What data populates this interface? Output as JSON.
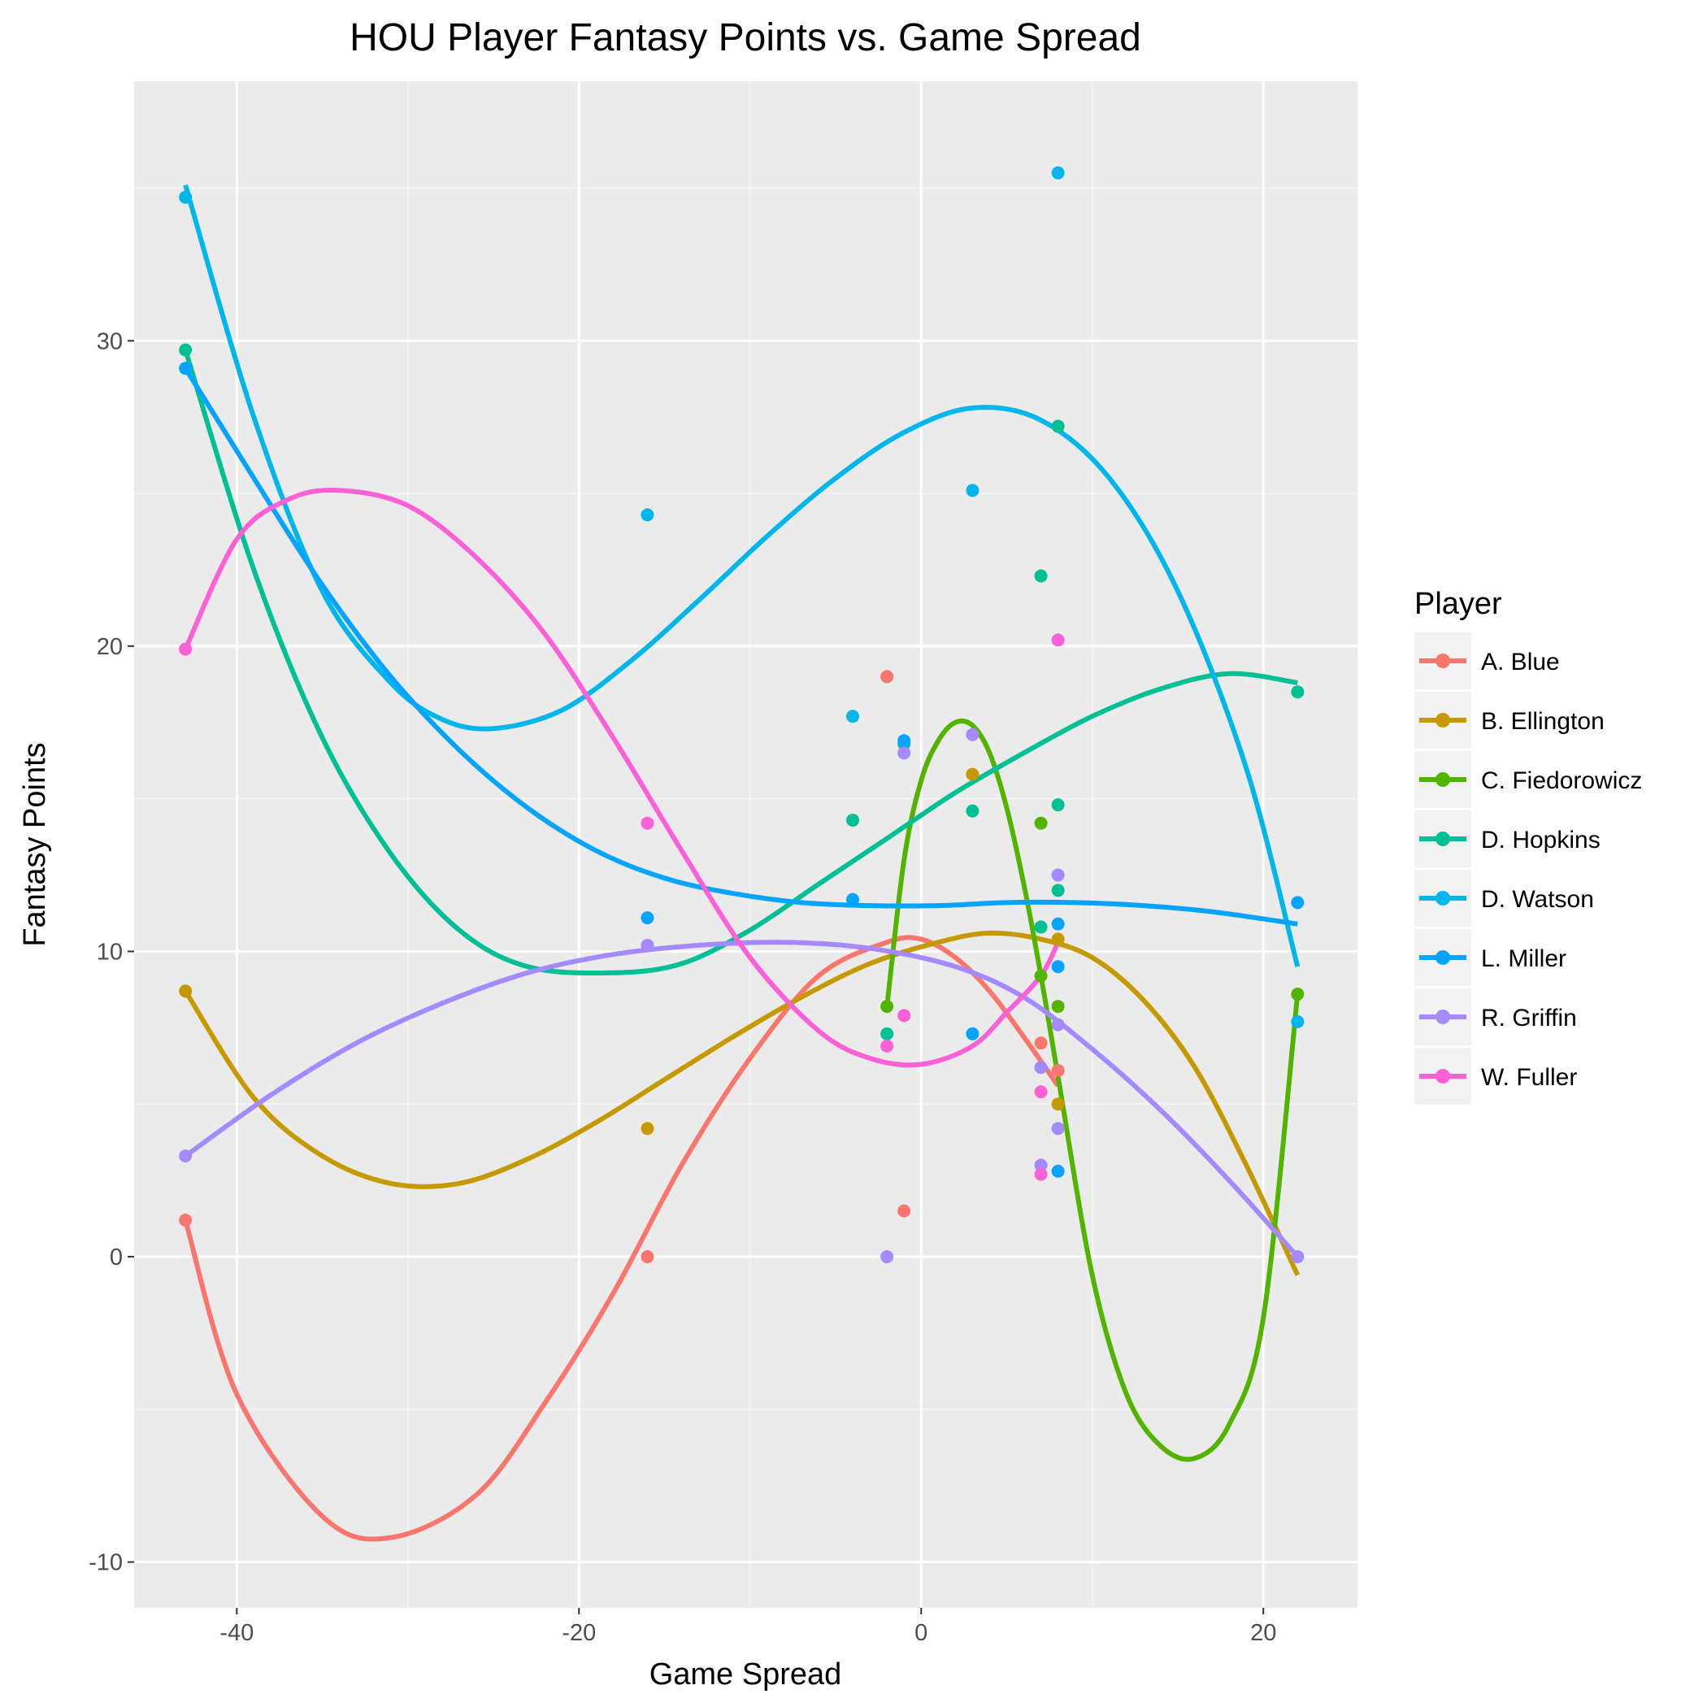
{
  "chart_data": {
    "type": "scatter",
    "title": "HOU Player Fantasy Points vs. Game Spread",
    "xlabel": "Game Spread",
    "ylabel": "Fantasy Points",
    "xlim": [
      -46,
      25.5
    ],
    "ylim": [
      -11.5,
      38.5
    ],
    "xticks": [
      -40,
      -20,
      0,
      20
    ],
    "yticks": [
      -10,
      0,
      10,
      20,
      30
    ],
    "grid": true,
    "legend": {
      "title": "Player",
      "position": "right"
    },
    "series": [
      {
        "name": "A. Blue",
        "color": "#F8766D",
        "points": [
          [
            -43,
            1.2
          ],
          [
            -16,
            0
          ],
          [
            -2,
            19.0
          ],
          [
            -1,
            1.5
          ],
          [
            7,
            7.0
          ],
          [
            8,
            6.1
          ]
        ],
        "smooth": [
          [
            -43,
            1.2
          ],
          [
            -40,
            -4.5
          ],
          [
            -35,
            -8.5
          ],
          [
            -31,
            -9.2
          ],
          [
            -26,
            -7.8
          ],
          [
            -22,
            -4.8
          ],
          [
            -18,
            -1.2
          ],
          [
            -14,
            3.0
          ],
          [
            -10,
            6.5
          ],
          [
            -6,
            9.2
          ],
          [
            -2,
            10.3
          ],
          [
            0,
            10.4
          ],
          [
            2,
            9.8
          ],
          [
            4,
            8.7
          ],
          [
            6,
            7.2
          ],
          [
            8,
            5.6
          ]
        ]
      },
      {
        "name": "B. Ellington",
        "color": "#C49A00",
        "points": [
          [
            -43,
            8.7
          ],
          [
            -16,
            4.2
          ],
          [
            3,
            15.8
          ],
          [
            8,
            5.0
          ],
          [
            8,
            10.4
          ]
        ],
        "smooth": [
          [
            -43,
            8.7
          ],
          [
            -39,
            5.2
          ],
          [
            -35,
            3.3
          ],
          [
            -31,
            2.4
          ],
          [
            -27,
            2.4
          ],
          [
            -23,
            3.2
          ],
          [
            -19,
            4.4
          ],
          [
            -15,
            5.8
          ],
          [
            -11,
            7.2
          ],
          [
            -7,
            8.5
          ],
          [
            -3,
            9.6
          ],
          [
            1,
            10.3
          ],
          [
            4,
            10.6
          ],
          [
            7,
            10.4
          ],
          [
            10,
            9.8
          ],
          [
            13,
            8.4
          ],
          [
            16,
            6.2
          ],
          [
            19,
            3.0
          ],
          [
            22,
            -0.6
          ]
        ]
      },
      {
        "name": "C. Fiedorowicz",
        "color": "#53B400",
        "points": [
          [
            -2,
            8.2
          ],
          [
            7,
            9.2
          ],
          [
            7,
            14.2
          ],
          [
            8,
            8.2
          ],
          [
            22,
            8.6
          ]
        ],
        "smooth": [
          [
            -2,
            8.2
          ],
          [
            -1,
            13.0
          ],
          [
            0,
            15.6
          ],
          [
            1,
            16.9
          ],
          [
            2,
            17.5
          ],
          [
            3,
            17.4
          ],
          [
            4,
            16.5
          ],
          [
            5,
            14.7
          ],
          [
            6,
            12.2
          ],
          [
            7,
            9.2
          ],
          [
            8,
            5.9
          ],
          [
            10,
            -0.6
          ],
          [
            12,
            -4.5
          ],
          [
            14,
            -6.2
          ],
          [
            16,
            -6.6
          ],
          [
            18,
            -5.5
          ],
          [
            20,
            -2.0
          ],
          [
            22,
            8.6
          ]
        ]
      },
      {
        "name": "D. Hopkins",
        "color": "#00C094",
        "points": [
          [
            -43,
            29.7
          ],
          [
            -4,
            14.3
          ],
          [
            -2,
            7.3
          ],
          [
            -1,
            16.8
          ],
          [
            3,
            14.6
          ],
          [
            7,
            22.3
          ],
          [
            7,
            10.8
          ],
          [
            8,
            27.2
          ],
          [
            8,
            14.8
          ],
          [
            8,
            12.0
          ],
          [
            22,
            18.5
          ]
        ],
        "smooth": [
          [
            -43,
            29.7
          ],
          [
            -39,
            22.5
          ],
          [
            -35,
            17.0
          ],
          [
            -31,
            13.2
          ],
          [
            -27,
            10.7
          ],
          [
            -23,
            9.5
          ],
          [
            -18,
            9.3
          ],
          [
            -14,
            9.6
          ],
          [
            -10,
            10.7
          ],
          [
            -6,
            12.2
          ],
          [
            -2,
            13.7
          ],
          [
            2,
            15.2
          ],
          [
            6,
            16.5
          ],
          [
            10,
            17.7
          ],
          [
            14,
            18.6
          ],
          [
            18,
            19.1
          ],
          [
            22,
            18.8
          ]
        ]
      },
      {
        "name": "D. Watson",
        "color": "#00B6EB",
        "points": [
          [
            -43,
            34.7
          ],
          [
            -16,
            24.3
          ],
          [
            -4,
            17.7
          ],
          [
            3,
            25.1
          ],
          [
            8,
            35.5
          ],
          [
            22,
            7.7
          ]
        ],
        "smooth": [
          [
            -43,
            35.1
          ],
          [
            -39,
            27.5
          ],
          [
            -35,
            21.8
          ],
          [
            -31,
            18.8
          ],
          [
            -28,
            17.6
          ],
          [
            -25,
            17.3
          ],
          [
            -21,
            17.9
          ],
          [
            -17,
            19.5
          ],
          [
            -13,
            21.5
          ],
          [
            -9,
            23.6
          ],
          [
            -5,
            25.5
          ],
          [
            -1,
            27.0
          ],
          [
            3,
            27.8
          ],
          [
            7,
            27.4
          ],
          [
            11,
            25.5
          ],
          [
            15,
            21.8
          ],
          [
            19,
            16.0
          ],
          [
            22,
            9.5
          ]
        ]
      },
      {
        "name": "L. Miller",
        "color": "#06A4FF",
        "points": [
          [
            -43,
            29.1
          ],
          [
            -16,
            11.1
          ],
          [
            -4,
            11.7
          ],
          [
            -1,
            16.9
          ],
          [
            3,
            7.3
          ],
          [
            8,
            10.9
          ],
          [
            8,
            9.5
          ],
          [
            8,
            2.8
          ],
          [
            22,
            11.6
          ]
        ],
        "smooth": [
          [
            -43,
            29.1
          ],
          [
            -39,
            25.5
          ],
          [
            -35,
            22.0
          ],
          [
            -31,
            19.0
          ],
          [
            -27,
            16.6
          ],
          [
            -23,
            14.7
          ],
          [
            -19,
            13.3
          ],
          [
            -15,
            12.4
          ],
          [
            -11,
            11.9
          ],
          [
            -7,
            11.6
          ],
          [
            -3,
            11.5
          ],
          [
            1,
            11.5
          ],
          [
            5,
            11.6
          ],
          [
            9,
            11.6
          ],
          [
            13,
            11.5
          ],
          [
            17,
            11.3
          ],
          [
            22,
            10.9
          ]
        ]
      },
      {
        "name": "R. Griffin",
        "color": "#A58AFF",
        "points": [
          [
            -43,
            3.3
          ],
          [
            -16,
            10.2
          ],
          [
            -2,
            0
          ],
          [
            -1,
            16.5
          ],
          [
            3,
            17.1
          ],
          [
            7,
            6.2
          ],
          [
            7,
            3.0
          ],
          [
            8,
            12.5
          ],
          [
            8,
            7.6
          ],
          [
            8,
            4.2
          ],
          [
            22,
            0
          ]
        ],
        "smooth": [
          [
            -43,
            3.3
          ],
          [
            -38,
            5.3
          ],
          [
            -33,
            7.0
          ],
          [
            -28,
            8.3
          ],
          [
            -23,
            9.3
          ],
          [
            -18,
            9.9
          ],
          [
            -13,
            10.2
          ],
          [
            -8,
            10.3
          ],
          [
            -3,
            10.1
          ],
          [
            2,
            9.5
          ],
          [
            6,
            8.5
          ],
          [
            10,
            6.8
          ],
          [
            14,
            4.8
          ],
          [
            18,
            2.5
          ],
          [
            22,
            0
          ]
        ]
      },
      {
        "name": "W. Fuller",
        "color": "#FB61D7",
        "points": [
          [
            -43,
            19.9
          ],
          [
            -16,
            14.2
          ],
          [
            -2,
            6.9
          ],
          [
            -1,
            7.9
          ],
          [
            7,
            5.4
          ],
          [
            7,
            2.7
          ],
          [
            8,
            20.2
          ]
        ],
        "smooth": [
          [
            -43,
            19.9
          ],
          [
            -40,
            23.5
          ],
          [
            -37,
            24.8
          ],
          [
            -34,
            25.1
          ],
          [
            -30,
            24.6
          ],
          [
            -26,
            22.9
          ],
          [
            -22,
            20.4
          ],
          [
            -18,
            17.0
          ],
          [
            -14,
            13.3
          ],
          [
            -10,
            9.8
          ],
          [
            -6,
            7.4
          ],
          [
            -3,
            6.5
          ],
          [
            0,
            6.3
          ],
          [
            3,
            6.9
          ],
          [
            5,
            8.0
          ],
          [
            7,
            9.2
          ],
          [
            8,
            10.3
          ]
        ]
      }
    ]
  }
}
